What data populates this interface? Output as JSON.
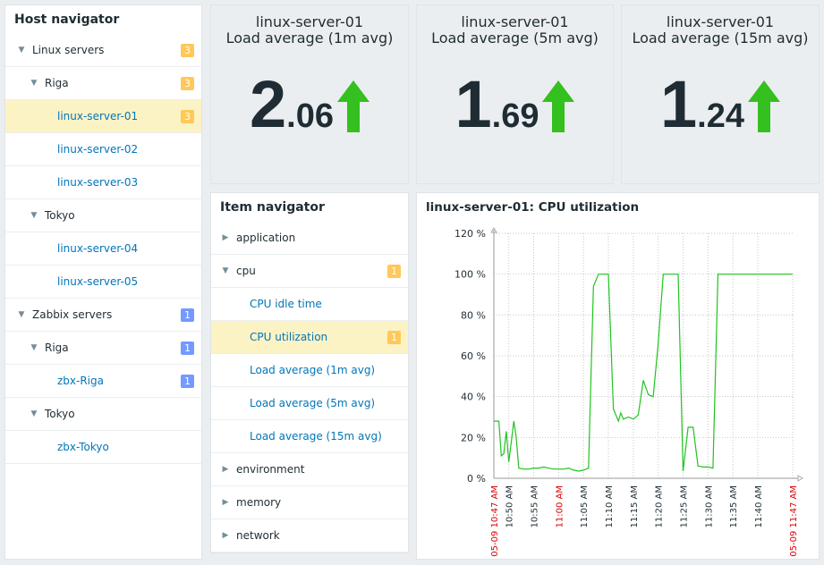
{
  "host_navigator": {
    "title": "Host navigator",
    "rows": [
      {
        "label": "Linux servers",
        "badge": "3"
      },
      {
        "label": "Riga",
        "badge": "3"
      },
      {
        "label": "linux-server-01",
        "badge": "3"
      },
      {
        "label": "linux-server-02"
      },
      {
        "label": "linux-server-03"
      },
      {
        "label": "Tokyo"
      },
      {
        "label": "linux-server-04"
      },
      {
        "label": "linux-server-05"
      },
      {
        "label": "Zabbix servers",
        "badge": "1"
      },
      {
        "label": "Riga",
        "badge": "1"
      },
      {
        "label": "zbx-Riga",
        "badge": "1"
      },
      {
        "label": "Tokyo"
      },
      {
        "label": "zbx-Tokyo"
      }
    ]
  },
  "metrics": [
    {
      "host": "linux-server-01",
      "description": "Load average (1m avg)",
      "int": "2",
      "dec": ".06",
      "trend": "up"
    },
    {
      "host": "linux-server-01",
      "description": "Load average (5m avg)",
      "int": "1",
      "dec": ".69",
      "trend": "up"
    },
    {
      "host": "linux-server-01",
      "description": "Load average (15m avg)",
      "int": "1",
      "dec": ".24",
      "trend": "up"
    }
  ],
  "item_navigator": {
    "title": "Item navigator",
    "rows": [
      {
        "label": "application"
      },
      {
        "label": "cpu",
        "badge": "1"
      },
      {
        "label": "CPU idle time"
      },
      {
        "label": "CPU utilization",
        "badge": "1"
      },
      {
        "label": "Load average (1m avg)"
      },
      {
        "label": "Load average (5m avg)"
      },
      {
        "label": "Load average (15m avg)"
      },
      {
        "label": "environment"
      },
      {
        "label": "memory"
      },
      {
        "label": "network"
      }
    ]
  },
  "graph": {
    "title": "linux-server-01: CPU utilization"
  },
  "colors": {
    "accent_link": "#0275b8",
    "warning_badge": "#ffc859",
    "info_badge": "#7499ff",
    "selected_row": "#fcf3c4",
    "trend_up": "#34c01e",
    "series_line": "#1fc41f",
    "time_marker": "#dc0000"
  },
  "chart_data": {
    "type": "line",
    "title": "linux-server-01: CPU utilization",
    "xlabel": "",
    "ylabel": "",
    "y_unit": "%",
    "ylim": [
      0,
      120
    ],
    "y_ticks": [
      "0 %",
      "20 %",
      "40 %",
      "60 %",
      "80 %",
      "100 %",
      "120 %"
    ],
    "x_tick_labels": [
      "05-09 10:47 AM",
      "10:50 AM",
      "10:55 AM",
      "11:00 AM",
      "11:05 AM",
      "11:10 AM",
      "11:15 AM",
      "11:20 AM",
      "11:25 AM",
      "11:30 AM",
      "11:35 AM",
      "11:40 AM",
      "05-09 11:47 AM"
    ],
    "x_ticks_minutes": [
      0,
      3,
      8,
      13,
      18,
      23,
      28,
      33,
      38,
      43,
      48,
      53,
      60
    ],
    "x_tick_highlight": [
      true,
      false,
      false,
      true,
      false,
      false,
      false,
      false,
      false,
      false,
      false,
      false,
      true
    ],
    "xlim_minutes": [
      0,
      60
    ],
    "grid": true,
    "series": [
      {
        "x_minutes": [
          0,
          1,
          1.5,
          2,
          2.5,
          3,
          4,
          4.5,
          5,
          6,
          6.5,
          7,
          8,
          9,
          10,
          11,
          12,
          13,
          14,
          15,
          16,
          17,
          18,
          19,
          20,
          21,
          22,
          23,
          24,
          25,
          25.5,
          26,
          27,
          28,
          29,
          30,
          31,
          32,
          33,
          34,
          35,
          36,
          36.5,
          37,
          38,
          39,
          40,
          41,
          42,
          43,
          44,
          45,
          46,
          47,
          48,
          49,
          50,
          51,
          52,
          53,
          54,
          55,
          56,
          57,
          58,
          59,
          60
        ],
        "values": [
          28,
          28,
          11,
          12,
          23,
          8,
          28,
          20,
          5,
          4.5,
          4.5,
          4.5,
          5,
          5,
          5.5,
          5,
          4.5,
          4.5,
          4.5,
          5,
          4,
          3.5,
          4,
          5,
          94,
          100,
          100,
          100,
          34,
          28,
          32,
          29,
          30,
          29,
          31,
          48,
          41,
          40,
          66,
          100,
          100,
          100,
          100,
          100,
          3.5,
          25,
          25,
          6,
          5.5,
          5.5,
          5,
          100,
          100,
          100,
          100,
          100,
          100,
          100,
          100,
          100,
          100,
          100,
          100,
          100,
          100,
          100,
          100
        ]
      }
    ]
  }
}
